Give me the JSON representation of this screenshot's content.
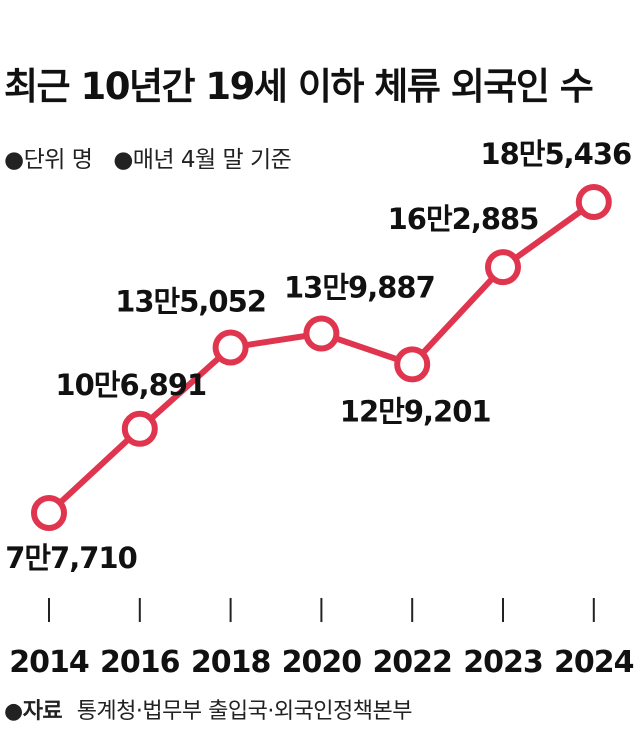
{
  "title": "최근 10년간 19세 이하 체류 외국인 수",
  "notes": [
    "●단위 명",
    "●매년 4월 말 기준"
  ],
  "source": {
    "label": "●자료",
    "text": "통계청·법무부 출입국·외국인정책본부"
  },
  "colors": {
    "line": "#e0354f",
    "marker_fill": "#ffffff",
    "text": "#111111",
    "tick": "#222222"
  },
  "chart_data": {
    "type": "line",
    "title": "최근 10년간 19세 이하 체류 외국인 수",
    "xlabel": "",
    "ylabel": "",
    "unit": "명",
    "categories": [
      "2014",
      "2016",
      "2018",
      "2020",
      "2022",
      "2023",
      "2024"
    ],
    "series": [
      {
        "values": [
          77710,
          106891,
          135052,
          139887,
          129201,
          162885,
          185436
        ],
        "data_labels": [
          "7만7,710",
          "10만6,891",
          "13만5,052",
          "13만9,887",
          "12만9,201",
          "16만2,885",
          "18만5,436"
        ]
      }
    ],
    "ylim": [
      60000,
      200000
    ],
    "grid": false,
    "legend": "none"
  }
}
